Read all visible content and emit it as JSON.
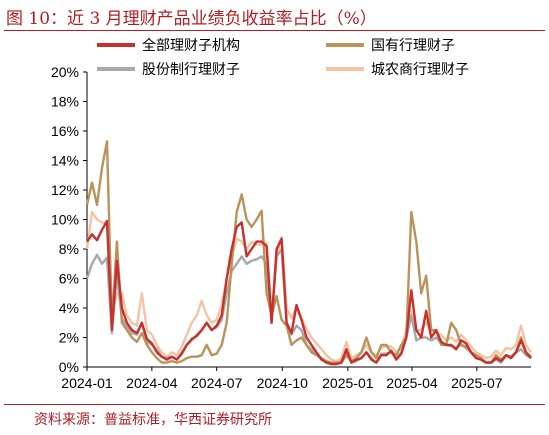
{
  "title": "图 10：近 3 月理财产品业绩负收益率占比（%）",
  "source": "资料来源：普益标准，华西证券研究所",
  "colors": {
    "title": "#b01e23",
    "全部理财子机构": "#c8302e",
    "国有行理财子": "#b9935a",
    "股份制行理财子": "#a8a8a8",
    "城农商行理财子": "#f3c4a4"
  },
  "chart_data": {
    "type": "line",
    "title": "近 3 月理财产品业绩负收益率占比（%）",
    "xlabel": "",
    "ylabel": "",
    "ylim": [
      0,
      20
    ],
    "y_ticks": [
      "0%",
      "2%",
      "4%",
      "6%",
      "8%",
      "10%",
      "12%",
      "14%",
      "16%",
      "18%",
      "20%"
    ],
    "x_ticks": [
      "2024-01",
      "2024-04",
      "2024-07",
      "2024-10",
      "2025-01",
      "2025-04",
      "2025-07"
    ],
    "x_range": [
      "2024-01-01",
      "2025-09-15"
    ],
    "legend_position": "top",
    "grid": false,
    "x": [
      "2024-01-01",
      "2024-01-08",
      "2024-01-15",
      "2024-01-22",
      "2024-01-29",
      "2024-02-05",
      "2024-02-12",
      "2024-02-19",
      "2024-02-26",
      "2024-03-04",
      "2024-03-11",
      "2024-03-18",
      "2024-03-25",
      "2024-04-01",
      "2024-04-08",
      "2024-04-15",
      "2024-04-22",
      "2024-04-29",
      "2024-05-06",
      "2024-05-13",
      "2024-05-20",
      "2024-05-27",
      "2024-06-03",
      "2024-06-10",
      "2024-06-17",
      "2024-06-24",
      "2024-07-01",
      "2024-07-08",
      "2024-07-15",
      "2024-07-22",
      "2024-07-29",
      "2024-08-05",
      "2024-08-12",
      "2024-08-19",
      "2024-08-26",
      "2024-09-02",
      "2024-09-09",
      "2024-09-16",
      "2024-09-23",
      "2024-09-30",
      "2024-10-07",
      "2024-10-14",
      "2024-10-21",
      "2024-10-28",
      "2024-11-04",
      "2024-11-11",
      "2024-11-18",
      "2024-11-25",
      "2024-12-02",
      "2024-12-09",
      "2024-12-16",
      "2024-12-23",
      "2024-12-30",
      "2025-01-06",
      "2025-01-13",
      "2025-01-20",
      "2025-01-27",
      "2025-02-03",
      "2025-02-10",
      "2025-02-17",
      "2025-02-24",
      "2025-03-03",
      "2025-03-10",
      "2025-03-17",
      "2025-03-24",
      "2025-03-31",
      "2025-04-07",
      "2025-04-14",
      "2025-04-21",
      "2025-04-28",
      "2025-05-05",
      "2025-05-12",
      "2025-05-19",
      "2025-05-26",
      "2025-06-02",
      "2025-06-09",
      "2025-06-16",
      "2025-06-23",
      "2025-06-30",
      "2025-07-07",
      "2025-07-14",
      "2025-07-21",
      "2025-07-28",
      "2025-08-04",
      "2025-08-11",
      "2025-08-18",
      "2025-08-25",
      "2025-09-01",
      "2025-09-08",
      "2025-09-15"
    ],
    "series": [
      {
        "name": "全部理财子机构",
        "values": [
          8.5,
          9.0,
          8.6,
          9.3,
          9.9,
          2.5,
          7.2,
          4.0,
          3.0,
          2.5,
          2.3,
          3.0,
          1.9,
          1.6,
          1.0,
          0.7,
          0.5,
          0.7,
          0.5,
          0.9,
          1.5,
          1.9,
          2.1,
          2.5,
          3.0,
          2.5,
          2.8,
          3.5,
          6.0,
          8.0,
          9.5,
          9.8,
          7.5,
          8.0,
          8.5,
          8.5,
          8.2,
          3.0,
          8.0,
          8.7,
          3.0,
          2.3,
          4.2,
          3.2,
          2.0,
          1.5,
          1.0,
          0.5,
          0.3,
          0.2,
          0.2,
          0.3,
          1.2,
          0.3,
          0.5,
          0.6,
          1.0,
          0.5,
          0.3,
          0.8,
          0.8,
          1.1,
          0.5,
          0.9,
          2.0,
          5.2,
          2.5,
          2.0,
          3.8,
          2.0,
          2.5,
          1.7,
          1.5,
          1.5,
          1.2,
          1.8,
          1.6,
          1.0,
          0.6,
          0.5,
          0.3,
          0.3,
          0.6,
          0.4,
          0.8,
          0.6,
          1.0,
          1.8,
          1.0,
          0.6
        ]
      },
      {
        "name": "国有行理财子",
        "values": [
          11.0,
          12.5,
          11.0,
          13.5,
          15.3,
          3.0,
          8.5,
          3.0,
          2.5,
          2.0,
          1.7,
          2.3,
          1.5,
          1.0,
          0.6,
          0.3,
          0.3,
          0.4,
          0.3,
          0.4,
          0.6,
          0.7,
          0.7,
          0.8,
          1.5,
          0.8,
          0.9,
          1.5,
          3.0,
          7.0,
          10.5,
          11.7,
          10.0,
          9.5,
          10.0,
          10.6,
          5.0,
          3.5,
          4.8,
          3.2,
          2.8,
          1.5,
          1.8,
          2.0,
          1.5,
          1.0,
          0.8,
          0.6,
          0.4,
          0.3,
          0.3,
          0.3,
          0.8,
          0.4,
          0.6,
          1.0,
          2.0,
          1.0,
          0.6,
          1.5,
          1.5,
          1.0,
          0.8,
          1.5,
          2.0,
          10.5,
          8.5,
          5.0,
          6.2,
          2.5,
          2.5,
          1.5,
          1.5,
          3.0,
          2.5,
          1.5,
          1.3,
          1.0,
          0.8,
          0.6,
          0.3,
          0.3,
          0.8,
          0.5,
          0.8,
          0.7,
          1.0,
          2.0,
          1.0,
          0.7
        ]
      },
      {
        "name": "股份制行理财子",
        "values": [
          6.0,
          7.0,
          7.6,
          7.0,
          7.4,
          2.3,
          6.3,
          3.3,
          2.8,
          2.3,
          2.2,
          3.0,
          1.7,
          1.5,
          1.2,
          0.7,
          0.6,
          0.7,
          0.5,
          1.0,
          1.5,
          1.8,
          2.2,
          2.5,
          3.0,
          2.5,
          2.7,
          3.2,
          5.0,
          6.5,
          7.0,
          7.5,
          7.0,
          7.2,
          7.3,
          7.5,
          7.0,
          3.0,
          7.5,
          8.0,
          3.0,
          2.2,
          2.8,
          2.5,
          1.5,
          1.2,
          0.9,
          0.5,
          0.3,
          0.2,
          0.2,
          0.4,
          1.0,
          0.3,
          0.4,
          0.6,
          1.0,
          0.6,
          0.3,
          0.9,
          0.9,
          1.0,
          0.6,
          1.0,
          2.0,
          3.5,
          1.8,
          2.0,
          2.0,
          1.8,
          2.0,
          1.6,
          1.5,
          1.4,
          1.3,
          1.5,
          1.4,
          1.0,
          0.6,
          0.5,
          0.3,
          0.3,
          0.5,
          0.3,
          0.8,
          0.6,
          1.0,
          1.2,
          0.8,
          0.6
        ]
      },
      {
        "name": "城农商行理财子",
        "values": [
          8.0,
          10.5,
          10.0,
          9.8,
          9.7,
          3.5,
          5.0,
          5.0,
          3.5,
          3.0,
          2.8,
          5.0,
          2.5,
          2.2,
          1.5,
          1.0,
          0.7,
          1.0,
          0.8,
          1.4,
          2.2,
          3.0,
          3.5,
          4.5,
          3.5,
          3.0,
          3.2,
          4.2,
          6.0,
          7.5,
          8.7,
          8.5,
          8.0,
          8.5,
          8.3,
          8.3,
          8.4,
          3.5,
          7.5,
          8.8,
          4.0,
          3.3,
          4.0,
          3.3,
          2.6,
          2.0,
          1.6,
          1.2,
          0.8,
          0.5,
          0.4,
          0.6,
          1.7,
          0.6,
          0.8,
          1.0,
          1.5,
          1.0,
          0.8,
          1.3,
          1.4,
          1.4,
          1.0,
          1.3,
          2.5,
          3.8,
          2.5,
          2.5,
          3.0,
          2.5,
          2.3,
          2.2,
          1.8,
          2.0,
          1.7,
          2.2,
          1.8,
          1.4,
          1.0,
          0.8,
          0.6,
          0.7,
          1.1,
          0.8,
          1.3,
          1.2,
          1.5,
          2.8,
          1.5,
          1.0
        ]
      }
    ]
  }
}
